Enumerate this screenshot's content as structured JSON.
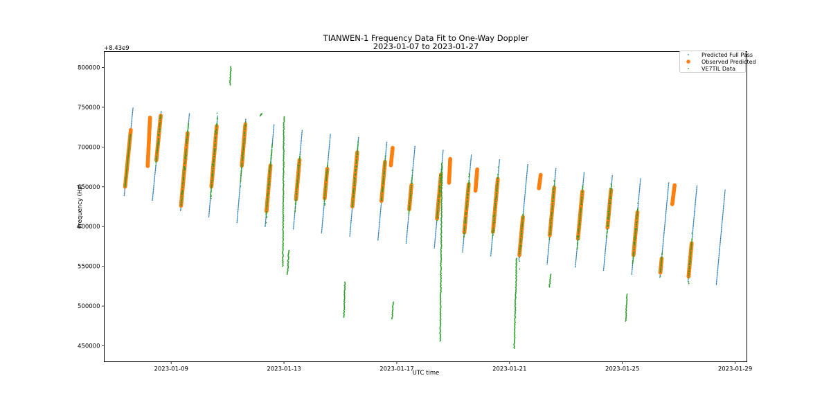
{
  "chart_data": {
    "type": "scatter",
    "title": "TIANWEN-1 Frequency Data Fit to One-Way Doppler",
    "subtitle": "2023-01-07 to 2023-01-27",
    "xlabel": "UTC time",
    "ylabel": "Frequency (Hz)",
    "y_offset_label": "+8.43e9",
    "xlim": [
      "2023-01-06T15:00",
      "2023-01-29T10:00"
    ],
    "ylim": [
      430000,
      820000
    ],
    "grid": false,
    "legend_position": "top-right",
    "x_ticks": [
      "2023-01-09",
      "2023-01-13",
      "2023-01-17",
      "2023-01-21",
      "2023-01-25",
      "2023-01-29"
    ],
    "y_ticks": [
      450000,
      500000,
      550000,
      600000,
      650000,
      700000,
      750000,
      800000
    ],
    "series": [
      {
        "name": "Predicted Full Pass",
        "marker": "small-dot",
        "color": "#1f77b4"
      },
      {
        "name": "Observed Predicted",
        "marker": "circle",
        "color": "#ff7f0e"
      },
      {
        "name": "VE7TIL Data",
        "marker": "small-dot",
        "color": "#2ca02c"
      }
    ],
    "passes": [
      {
        "start": "2023-01-07T08:00",
        "hours": 7.5,
        "f0": 639000,
        "f1": 749000,
        "obs": [
          0.1,
          0.75
        ],
        "vlag": [
          0.1,
          0.7
        ],
        "vnoise": 0
      },
      {
        "start": "2023-01-08T08:00",
        "hours": 7.5,
        "f0": 633000,
        "f1": 745000,
        "obs": [
          0.45,
          0.95
        ],
        "vlag": [
          0.4,
          0.95
        ],
        "vnoise": 8000
      },
      {
        "start": "2023-01-09T08:00",
        "hours": 7.5,
        "f0": 620000,
        "f1": 742000,
        "obs": [
          0.05,
          0.8
        ],
        "vlag": [
          0.05,
          0.9
        ],
        "vnoise": 12000
      },
      {
        "start": "2023-01-10T08:00",
        "hours": 7.5,
        "f0": 612000,
        "f1": 739000,
        "obs": [
          0.3,
          0.9
        ],
        "vlag": [
          0.2,
          0.98
        ],
        "vnoise": 15000
      },
      {
        "start": "2023-01-11T08:00",
        "hours": 7.5,
        "f0": 605000,
        "f1": 735000,
        "obs": [
          0.55,
          0.95
        ],
        "vlag": [
          0.4,
          0.98
        ],
        "vnoise": 10000
      },
      {
        "start": "2023-01-12T08:00",
        "hours": 7.5,
        "f0": 600000,
        "f1": 728000,
        "obs": [
          0.15,
          0.6
        ],
        "vlag": [
          0.1,
          0.8
        ],
        "vnoise": 10000
      },
      {
        "start": "2023-01-13T08:00",
        "hours": 7.5,
        "f0": 597000,
        "f1": 721000,
        "obs": [
          0.3,
          0.7
        ],
        "vlag": [
          0.2,
          0.75
        ],
        "vnoise": 20000
      },
      {
        "start": "2023-01-14T08:00",
        "hours": 7.5,
        "f0": 592000,
        "f1": 716000,
        "obs": [
          0.35,
          0.65
        ],
        "vlag": [
          0.3,
          0.7
        ],
        "vnoise": 12000
      },
      {
        "start": "2023-01-15T08:00",
        "hours": 7.5,
        "f0": 588000,
        "f1": 712000,
        "obs": [
          0.3,
          0.85
        ],
        "vlag": [
          0.3,
          0.95
        ],
        "vnoise": 12000
      },
      {
        "start": "2023-01-16T08:00",
        "hours": 7.5,
        "f0": 583000,
        "f1": 706000,
        "obs": [
          0.4,
          0.8
        ],
        "vlag": [
          0.4,
          0.85
        ],
        "vnoise": 12000
      },
      {
        "start": "2023-01-17T08:00",
        "hours": 7.5,
        "f0": 579000,
        "f1": 701000,
        "obs": [
          0.35,
          0.6
        ],
        "vlag": [
          0.3,
          0.7
        ],
        "vnoise": 10000
      },
      {
        "start": "2023-01-18T08:00",
        "hours": 7.5,
        "f0": 573000,
        "f1": 696000,
        "obs": [
          0.3,
          0.75
        ],
        "vlag": [
          0.3,
          0.8
        ],
        "vnoise": 20000
      },
      {
        "start": "2023-01-19T08:00",
        "hours": 7.5,
        "f0": 568000,
        "f1": 690000,
        "obs": [
          0.2,
          0.7
        ],
        "vlag": [
          0.15,
          0.8
        ],
        "vnoise": 15000
      },
      {
        "start": "2023-01-20T08:00",
        "hours": 7.5,
        "f0": 563000,
        "f1": 684000,
        "obs": [
          0.25,
          0.8
        ],
        "vlag": [
          0.2,
          0.85
        ],
        "vnoise": 12000
      },
      {
        "start": "2023-01-21T08:00",
        "hours": 7.5,
        "f0": 558000,
        "f1": 678000,
        "obs": [
          0.05,
          0.45
        ],
        "vlag": [
          0.05,
          0.5
        ],
        "vnoise": 25000
      },
      {
        "start": "2023-01-22T08:00",
        "hours": 7.5,
        "f0": 553000,
        "f1": 673000,
        "obs": [
          0.3,
          0.8
        ],
        "vlag": [
          0.25,
          0.85
        ],
        "vnoise": 15000
      },
      {
        "start": "2023-01-23T08:00",
        "hours": 7.5,
        "f0": 549000,
        "f1": 668000,
        "obs": [
          0.3,
          0.8
        ],
        "vlag": [
          0.2,
          0.85
        ],
        "vnoise": 15000
      },
      {
        "start": "2023-01-24T08:00",
        "hours": 7.5,
        "f0": 545000,
        "f1": 664000,
        "obs": [
          0.45,
          0.85
        ],
        "vlag": [
          0.35,
          0.9
        ],
        "vnoise": 15000
      },
      {
        "start": "2023-01-25T08:00",
        "hours": 7.5,
        "f0": 540000,
        "f1": 660000,
        "obs": [
          0.2,
          0.65
        ],
        "vlag": [
          0.1,
          0.7
        ],
        "vnoise": 15000
      },
      {
        "start": "2023-01-26T08:00",
        "hours": 7.5,
        "f0": 536000,
        "f1": 655000,
        "obs": [
          0.05,
          0.2
        ],
        "vlag": [
          0.05,
          0.25
        ],
        "vnoise": 10000
      },
      {
        "start": "2023-01-27T08:00",
        "hours": 7.5,
        "f0": 531000,
        "f1": 651000,
        "obs": [
          0.05,
          0.4
        ],
        "vlag": [
          0.05,
          0.45
        ],
        "vnoise": 15000
      },
      {
        "start": "2023-01-28T08:00",
        "hours": 7.5,
        "f0": 527000,
        "f1": 646000,
        "obs": null,
        "vlag": null,
        "vnoise": 0
      }
    ],
    "observed_extra": [
      {
        "start": "2023-01-08T04:00",
        "end": "2023-01-08T06:00",
        "f0": 676000,
        "f1": 737000
      },
      {
        "start": "2023-01-16T19:00",
        "end": "2023-01-16T20:30",
        "f0": 677000,
        "f1": 699000
      },
      {
        "start": "2023-01-18T20:30",
        "end": "2023-01-18T21:30",
        "f0": 655000,
        "f1": 685000
      },
      {
        "start": "2023-01-19T19:00",
        "end": "2023-01-19T20:30",
        "f0": 645000,
        "f1": 672000
      },
      {
        "start": "2023-01-22T01:00",
        "end": "2023-01-22T02:30",
        "f0": 648000,
        "f1": 665000
      },
      {
        "start": "2023-01-26T18:30",
        "end": "2023-01-26T20:30",
        "f0": 628000,
        "f1": 652000
      }
    ],
    "ve7til_outliers": [
      {
        "start": "2023-01-11T02:00",
        "end": "2023-01-11T03:00",
        "f0": 778000,
        "f1": 801000
      },
      {
        "start": "2023-01-12T04:00",
        "end": "2023-01-12T05:00",
        "f0": 739000,
        "f1": 742000
      },
      {
        "start": "2023-01-12T23:00",
        "end": "2023-01-13T00:00",
        "f0": 550000,
        "f1": 738000
      },
      {
        "start": "2023-01-13T03:00",
        "end": "2023-01-13T04:00",
        "f0": 540000,
        "f1": 570000
      },
      {
        "start": "2023-01-15T03:00",
        "end": "2023-01-15T04:00",
        "f0": 486000,
        "f1": 530000
      },
      {
        "start": "2023-01-16T20:00",
        "end": "2023-01-16T21:00",
        "f0": 484000,
        "f1": 505000
      },
      {
        "start": "2023-01-18T13:00",
        "end": "2023-01-18T14:30",
        "f0": 456000,
        "f1": 680000
      },
      {
        "start": "2023-01-21T04:00",
        "end": "2023-01-21T06:00",
        "f0": 447000,
        "f1": 560000
      },
      {
        "start": "2023-01-22T10:00",
        "end": "2023-01-22T11:00",
        "f0": 524000,
        "f1": 540000
      },
      {
        "start": "2023-01-25T03:00",
        "end": "2023-01-25T04:00",
        "f0": 481000,
        "f1": 515000
      }
    ]
  }
}
